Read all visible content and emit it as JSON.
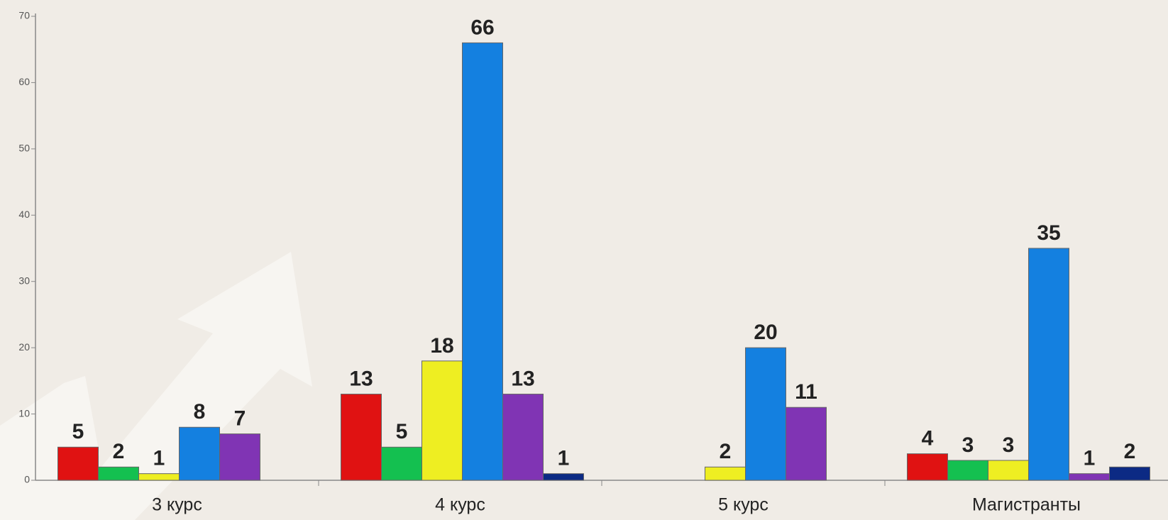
{
  "chart_data": {
    "type": "bar",
    "categories": [
      "3 курс",
      "4 курс",
      "5 курс",
      "Магистранты"
    ],
    "series": [
      {
        "color": "#e01212",
        "values": [
          5,
          13,
          null,
          4
        ]
      },
      {
        "color": "#14c050",
        "values": [
          2,
          5,
          null,
          3
        ]
      },
      {
        "color": "#eeee22",
        "values": [
          1,
          18,
          2,
          3
        ]
      },
      {
        "color": "#1480e0",
        "values": [
          8,
          66,
          20,
          35
        ]
      },
      {
        "color": "#8034b4",
        "values": [
          7,
          13,
          11,
          1
        ]
      },
      {
        "color": "#0c2a84",
        "values": [
          null,
          1,
          null,
          2
        ]
      }
    ],
    "ylim": [
      0,
      70
    ],
    "yticks": [
      0,
      10,
      20,
      30,
      40,
      50,
      60,
      70
    ]
  }
}
